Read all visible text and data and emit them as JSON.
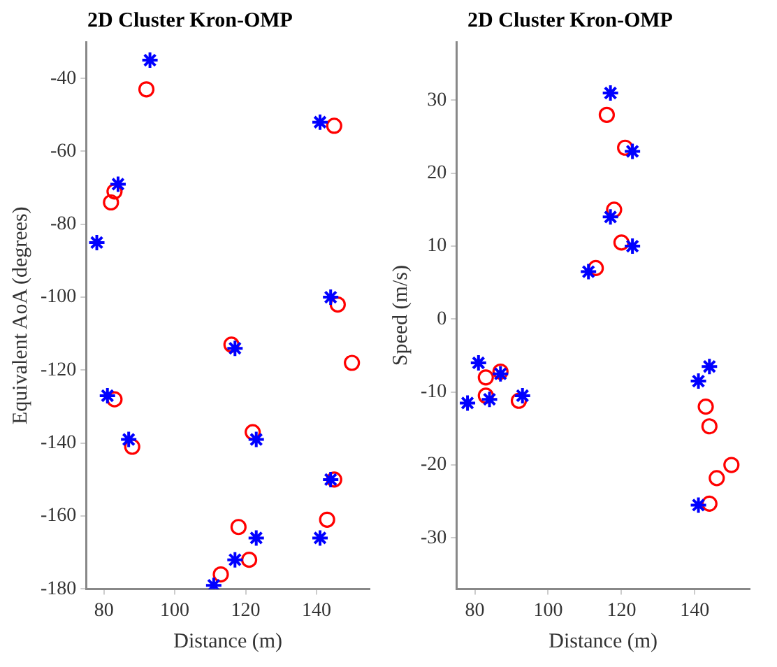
{
  "chart_data": [
    {
      "type": "scatter",
      "title": "2D Cluster Kron-OMP",
      "xlabel": "Distance (m)",
      "ylabel": "Equivalent AoA (degrees)",
      "xlim": [
        75,
        155
      ],
      "xticks": [
        80,
        100,
        120,
        140
      ],
      "ylim": [
        -180,
        -30
      ],
      "yticks": [
        -180,
        -160,
        -140,
        -120,
        -100,
        -80,
        -60,
        -40
      ],
      "grid": false,
      "legend": false,
      "series": [
        {
          "color": "#0000ff",
          "marker": "cross",
          "x": [
            93,
            141,
            84,
            78,
            144,
            117,
            81,
            87,
            123,
            144,
            123,
            141,
            117,
            111
          ],
          "values": [
            -35,
            -52,
            -69,
            -85,
            -100,
            -114,
            -127,
            -139,
            -139,
            -150,
            -166,
            -166,
            -172,
            -179
          ]
        },
        {
          "color": "#ff0000",
          "marker": "circle",
          "x": [
            92,
            145,
            83,
            82,
            146,
            116,
            150,
            83,
            88,
            122,
            145,
            118,
            143,
            121,
            113
          ],
          "values": [
            -43,
            -53,
            -71,
            -74,
            -102,
            -113,
            -118,
            -128,
            -141,
            -137,
            -150,
            -163,
            -161,
            -172,
            -176
          ]
        }
      ]
    },
    {
      "type": "scatter",
      "title": "2D Cluster Kron-OMP",
      "xlabel": "Distance (m)",
      "ylabel": "Speed (m/s)",
      "xlim": [
        75,
        155
      ],
      "xticks": [
        80,
        100,
        120,
        140
      ],
      "ylim": [
        -37,
        38
      ],
      "yticks": [
        -30,
        -20,
        -10,
        0,
        10,
        20,
        30
      ],
      "grid": false,
      "legend": false,
      "series": [
        {
          "color": "#0000ff",
          "marker": "cross",
          "x": [
            117,
            123,
            117,
            123,
            111,
            81,
            87,
            78,
            84,
            93,
            141,
            144,
            141
          ],
          "values": [
            31,
            23,
            14,
            10,
            6.5,
            -6,
            -7.5,
            -11.5,
            -11,
            -10.5,
            -8.5,
            -6.5,
            -25.5
          ]
        },
        {
          "color": "#ff0000",
          "marker": "circle",
          "x": [
            116,
            121,
            118,
            120,
            113,
            83,
            87,
            83,
            92,
            143,
            144,
            146,
            150,
            144
          ],
          "values": [
            28,
            23.5,
            15,
            10.5,
            7,
            -8,
            -7.2,
            -10.5,
            -11.2,
            -12,
            -14.7,
            -21.8,
            -20,
            -25.3
          ]
        }
      ]
    }
  ]
}
